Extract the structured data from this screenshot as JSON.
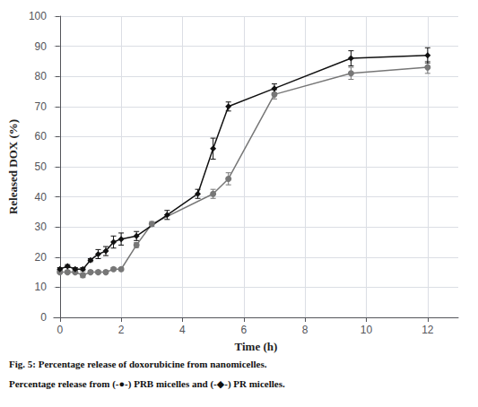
{
  "chart_data": {
    "type": "line",
    "xlabel": "Time (h)",
    "ylabel": "Released DOX (%)",
    "xlim": [
      -0.2,
      13
    ],
    "ylim": [
      0,
      100
    ],
    "xticks": [
      0,
      2,
      4,
      6,
      8,
      10,
      12
    ],
    "yticks": [
      0,
      10,
      20,
      30,
      40,
      50,
      60,
      70,
      80,
      90,
      100
    ],
    "grid": true,
    "annotations": [
      "Fig. 5: Percentage release of doxorubicine from nanomicelles.",
      "Percentage release from (-●-) PRB micelles and (-◆-) PR micelles."
    ],
    "series": [
      {
        "color": "#777777",
        "marker": "circle",
        "line_style": "solid",
        "x": [
          0,
          0.25,
          0.5,
          0.75,
          1.0,
          1.25,
          1.5,
          1.75,
          2.0,
          2.5,
          3.0,
          5.0,
          5.5,
          7.0,
          9.5,
          12.0
        ],
        "values": [
          15,
          15,
          15,
          14,
          15,
          15,
          15,
          16,
          16,
          24,
          31,
          41,
          46,
          74,
          81,
          83
        ],
        "yerr": [
          0.5,
          0.5,
          0.5,
          0.8,
          0.5,
          0.5,
          0.5,
          0.5,
          0.5,
          0.8,
          0.8,
          1.5,
          2.0,
          1.5,
          2.0,
          2.0
        ]
      },
      {
        "color": "#111111",
        "marker": "diamond",
        "line_style": "solid",
        "x": [
          0,
          0.25,
          0.5,
          0.75,
          1.0,
          1.25,
          1.5,
          1.75,
          2.0,
          2.5,
          3.5,
          4.5,
          5.0,
          5.5,
          7.0,
          9.5,
          12.0
        ],
        "values": [
          16,
          17,
          16,
          16,
          19,
          21,
          22,
          25,
          26,
          27,
          34,
          41,
          56,
          70,
          76,
          86,
          87
        ],
        "yerr": [
          0.5,
          0.5,
          0.5,
          0.5,
          0.5,
          1.5,
          1.5,
          2.0,
          2.0,
          1.5,
          1.5,
          1.5,
          3.5,
          1.5,
          1.5,
          2.5,
          2.5
        ]
      }
    ]
  }
}
